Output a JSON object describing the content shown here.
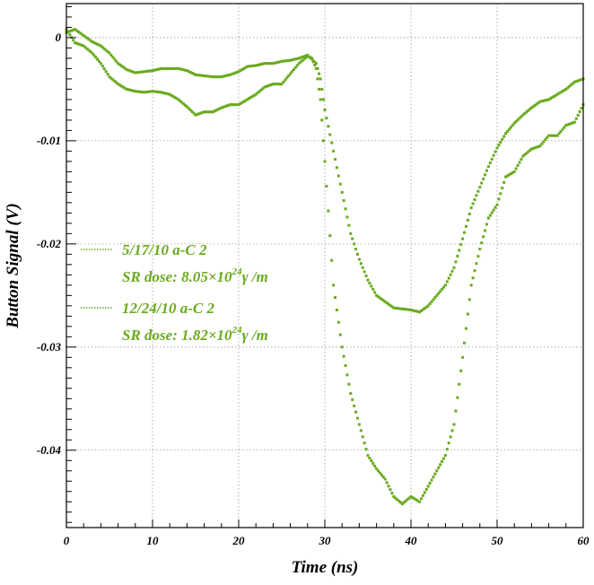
{
  "chart_data": {
    "type": "scatter",
    "title": "",
    "xlabel": "Time (ns)",
    "ylabel": "Button Signal (V)",
    "xlim": [
      0,
      60
    ],
    "ylim": [
      -0.0475,
      0.0033
    ],
    "x_ticks": [
      0,
      10,
      20,
      30,
      40,
      50,
      60
    ],
    "x_tick_labels": [
      "0",
      "10",
      "20",
      "30",
      "40",
      "50",
      "60"
    ],
    "y_ticks": [
      0,
      -0.01,
      -0.02,
      -0.03,
      -0.04
    ],
    "y_tick_labels": [
      "0",
      "-0.01",
      "-0.02",
      "-0.03",
      "-0.04"
    ],
    "grid": true,
    "legend_position": "left-middle",
    "marker_color": "#6aaa1e",
    "series": [
      {
        "name": "5/17/10 a-C 2",
        "dose_prefix": "SR dose: 8.05×10",
        "dose_exp": "24",
        "dose_unit": "γ /m",
        "points": [
          [
            0,
            0.0005
          ],
          [
            1,
            0.0008
          ],
          [
            2,
            0.0002
          ],
          [
            3,
            -0.0004
          ],
          [
            4,
            -0.0008
          ],
          [
            5,
            -0.0015
          ],
          [
            6,
            -0.0025
          ],
          [
            7,
            -0.0031
          ],
          [
            8,
            -0.0034
          ],
          [
            9,
            -0.0033
          ],
          [
            10,
            -0.0032
          ],
          [
            11,
            -0.003
          ],
          [
            12,
            -0.003
          ],
          [
            13,
            -0.003
          ],
          [
            14,
            -0.0032
          ],
          [
            15,
            -0.0036
          ],
          [
            16,
            -0.0037
          ],
          [
            17,
            -0.0038
          ],
          [
            18,
            -0.0038
          ],
          [
            19,
            -0.0036
          ],
          [
            20,
            -0.0033
          ],
          [
            21,
            -0.0028
          ],
          [
            22,
            -0.0027
          ],
          [
            23,
            -0.0025
          ],
          [
            24,
            -0.0025
          ],
          [
            25,
            -0.0023
          ],
          [
            26,
            -0.0022
          ],
          [
            27,
            -0.002
          ],
          [
            28,
            -0.0017
          ],
          [
            29,
            -0.0025
          ],
          [
            29.5,
            -0.004
          ],
          [
            30,
            -0.007
          ],
          [
            31,
            -0.011
          ],
          [
            32,
            -0.015
          ],
          [
            33,
            -0.019
          ],
          [
            34,
            -0.0215
          ],
          [
            35,
            -0.0235
          ],
          [
            36,
            -0.025
          ],
          [
            37,
            -0.0256
          ],
          [
            38,
            -0.0262
          ],
          [
            39,
            -0.0263
          ],
          [
            40,
            -0.0264
          ],
          [
            41,
            -0.0266
          ],
          [
            42,
            -0.026
          ],
          [
            43,
            -0.025
          ],
          [
            44,
            -0.024
          ],
          [
            45,
            -0.0223
          ],
          [
            46,
            -0.0195
          ],
          [
            47,
            -0.0165
          ],
          [
            48,
            -0.0145
          ],
          [
            49,
            -0.0125
          ],
          [
            50,
            -0.0107
          ],
          [
            51,
            -0.0093
          ],
          [
            52,
            -0.0083
          ],
          [
            53,
            -0.0075
          ],
          [
            54,
            -0.0068
          ],
          [
            55,
            -0.0062
          ],
          [
            56,
            -0.006
          ],
          [
            57,
            -0.0055
          ],
          [
            58,
            -0.005
          ],
          [
            59,
            -0.0043
          ],
          [
            60,
            -0.004
          ]
        ]
      },
      {
        "name": "12/24/10 a-C 2",
        "dose_prefix": "SR dose: 1.82×10",
        "dose_exp": "24",
        "dose_unit": "γ /m",
        "points": [
          [
            0,
            0.0008
          ],
          [
            1,
            -0.0005
          ],
          [
            2,
            -0.0008
          ],
          [
            3,
            -0.0015
          ],
          [
            4,
            -0.0025
          ],
          [
            5,
            -0.0038
          ],
          [
            6,
            -0.0045
          ],
          [
            7,
            -0.005
          ],
          [
            8,
            -0.0052
          ],
          [
            9,
            -0.0053
          ],
          [
            10,
            -0.0052
          ],
          [
            11,
            -0.0053
          ],
          [
            12,
            -0.0055
          ],
          [
            13,
            -0.006
          ],
          [
            14,
            -0.0067
          ],
          [
            15,
            -0.0075
          ],
          [
            16,
            -0.0072
          ],
          [
            17,
            -0.0072
          ],
          [
            18,
            -0.0068
          ],
          [
            19,
            -0.0065
          ],
          [
            20,
            -0.0065
          ],
          [
            21,
            -0.006
          ],
          [
            22,
            -0.0055
          ],
          [
            23,
            -0.0048
          ],
          [
            24,
            -0.0045
          ],
          [
            25,
            -0.0045
          ],
          [
            26,
            -0.0035
          ],
          [
            27,
            -0.0025
          ],
          [
            28,
            -0.0018
          ],
          [
            28.5,
            -0.002
          ],
          [
            29,
            -0.003
          ],
          [
            29.5,
            -0.006
          ],
          [
            30,
            -0.012
          ],
          [
            31,
            -0.024
          ],
          [
            32,
            -0.03
          ],
          [
            33,
            -0.0345
          ],
          [
            34,
            -0.0375
          ],
          [
            35,
            -0.0405
          ],
          [
            36,
            -0.0418
          ],
          [
            37,
            -0.0428
          ],
          [
            38,
            -0.0445
          ],
          [
            39,
            -0.0452
          ],
          [
            40,
            -0.0445
          ],
          [
            41,
            -0.045
          ],
          [
            42,
            -0.0435
          ],
          [
            43,
            -0.042
          ],
          [
            44,
            -0.0405
          ],
          [
            45,
            -0.0375
          ],
          [
            46,
            -0.031
          ],
          [
            47,
            -0.024
          ],
          [
            48,
            -0.0205
          ],
          [
            49,
            -0.0175
          ],
          [
            50,
            -0.0162
          ],
          [
            51,
            -0.0135
          ],
          [
            52,
            -0.013
          ],
          [
            53,
            -0.0115
          ],
          [
            54,
            -0.0108
          ],
          [
            55,
            -0.0105
          ],
          [
            56,
            -0.0095
          ],
          [
            57,
            -0.0095
          ],
          [
            58,
            -0.0085
          ],
          [
            59,
            -0.0082
          ],
          [
            60,
            -0.0065
          ]
        ]
      }
    ]
  }
}
